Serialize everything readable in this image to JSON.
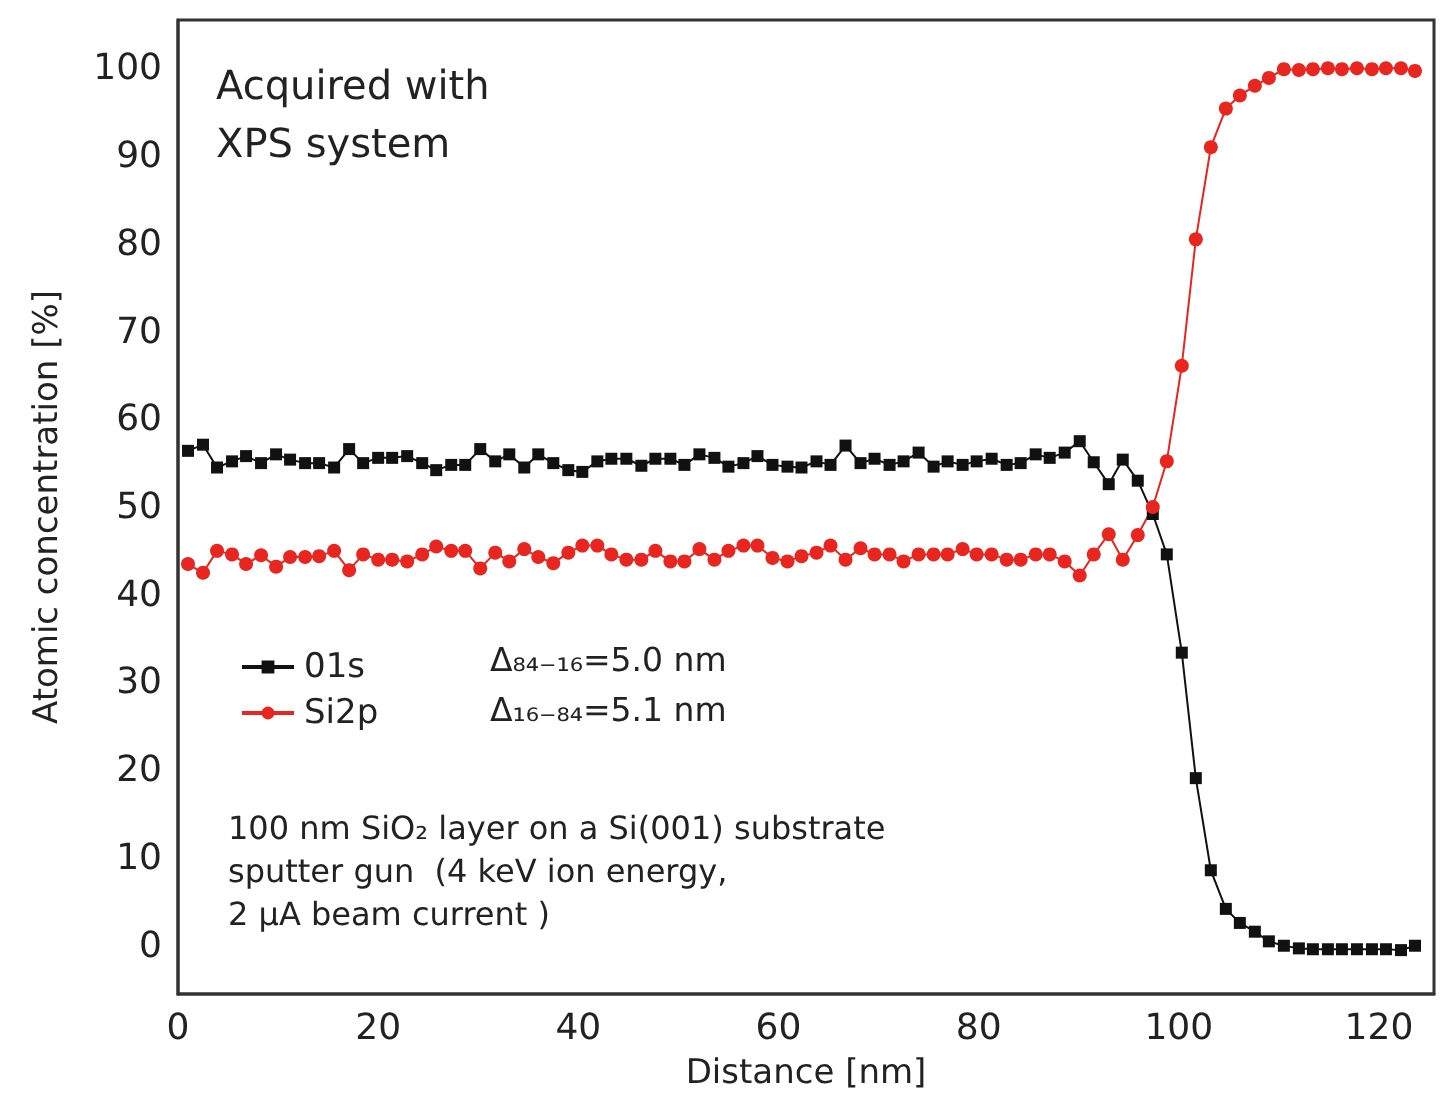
{
  "chart_data": {
    "type": "line",
    "xlabel": "Distance [nm]",
    "ylabel": "Atomic concentration [%]",
    "annotations": [
      "Acquired with\nXPS system",
      "Δ₈₄₋₁₆=5.0 nm",
      "Δ₁₆₋₈₄=5.1 nm",
      "100 nm SiO₂ layer on a Si(001) substrate\nsputter gun  (4 keV ion energy,\n2 µA beam current )"
    ],
    "x": [
      1.0,
      2.5,
      3.9,
      5.4,
      6.8,
      8.3,
      9.8,
      11.2,
      12.7,
      14.1,
      15.6,
      17.1,
      18.5,
      20.0,
      21.4,
      22.9,
      24.4,
      25.8,
      27.3,
      28.7,
      30.2,
      31.7,
      33.1,
      34.6,
      36.0,
      37.5,
      39.0,
      40.4,
      41.9,
      43.3,
      44.8,
      46.3,
      47.7,
      49.2,
      50.6,
      52.1,
      53.6,
      55.0,
      56.5,
      57.9,
      59.4,
      60.9,
      62.3,
      63.8,
      65.2,
      66.7,
      68.2,
      69.6,
      71.1,
      72.5,
      74.0,
      75.5,
      76.9,
      78.4,
      79.8,
      81.3,
      82.8,
      84.2,
      85.7,
      87.1,
      88.6,
      90.1,
      91.5,
      93.0,
      94.4,
      95.9,
      97.4,
      98.8,
      100.3,
      101.7,
      103.2,
      104.7,
      106.1,
      107.6,
      109.0,
      110.5,
      112.0,
      113.4,
      114.9,
      116.3,
      117.8,
      119.3,
      120.7,
      122.2,
      123.6
    ],
    "series": [
      {
        "name": "01s",
        "color": "#111111",
        "marker": "square",
        "values": [
          56.4,
          57.1,
          54.5,
          55.2,
          55.8,
          55.0,
          56.0,
          55.4,
          55.0,
          55.0,
          54.5,
          56.6,
          55.0,
          55.6,
          55.6,
          55.8,
          55.0,
          54.2,
          54.8,
          54.8,
          56.6,
          55.2,
          56.0,
          54.5,
          56.0,
          55.0,
          54.2,
          54.0,
          55.2,
          55.5,
          55.5,
          54.7,
          55.5,
          55.5,
          54.8,
          56.0,
          55.6,
          54.6,
          55.0,
          55.8,
          54.8,
          54.6,
          54.5,
          55.2,
          54.8,
          57.0,
          55.0,
          55.5,
          54.8,
          55.2,
          56.2,
          54.6,
          55.2,
          54.8,
          55.2,
          55.5,
          54.8,
          55.0,
          56.0,
          55.6,
          56.2,
          57.5,
          55.1,
          52.6,
          55.4,
          53.0,
          49.2,
          44.6,
          33.4,
          19.1,
          8.6,
          4.2,
          2.6,
          1.6,
          0.5,
          0.0,
          -0.3,
          -0.4,
          -0.4,
          -0.4,
          -0.4,
          -0.4,
          -0.4,
          -0.5,
          0.0
        ]
      },
      {
        "name": "Si2p",
        "color": "#e8251f",
        "marker": "circle",
        "values": [
          43.5,
          42.5,
          45.0,
          44.6,
          43.5,
          44.5,
          43.2,
          44.3,
          44.3,
          44.4,
          45.0,
          42.8,
          44.6,
          44.0,
          44.0,
          43.8,
          44.6,
          45.5,
          45.0,
          45.0,
          43.0,
          44.8,
          43.8,
          45.2,
          44.3,
          43.6,
          44.8,
          45.6,
          45.6,
          44.6,
          44.0,
          44.0,
          45.0,
          43.8,
          43.8,
          45.2,
          44.0,
          45.0,
          45.6,
          45.6,
          44.2,
          43.8,
          44.4,
          44.8,
          45.6,
          44.0,
          45.3,
          44.6,
          44.6,
          43.8,
          44.6,
          44.6,
          44.6,
          45.2,
          44.6,
          44.6,
          44.0,
          44.0,
          44.6,
          44.6,
          43.8,
          42.2,
          44.6,
          46.9,
          44.0,
          46.8,
          50.0,
          55.2,
          66.1,
          80.5,
          91.0,
          95.4,
          96.9,
          98.0,
          98.9,
          99.9,
          99.8,
          99.9,
          100.0,
          99.9,
          100.0,
          99.9,
          100.0,
          100.0,
          99.7
        ]
      }
    ],
    "xlim": [
      0,
      125.5
    ],
    "xticks": [
      0,
      20,
      40,
      60,
      80,
      100,
      120
    ],
    "ylim": [
      -5.5,
      105.5
    ],
    "yticks": [
      0,
      10,
      20,
      30,
      40,
      50,
      60,
      70,
      80,
      90,
      100
    ],
    "grid": false,
    "legend": "left",
    "line_style": "solid"
  }
}
